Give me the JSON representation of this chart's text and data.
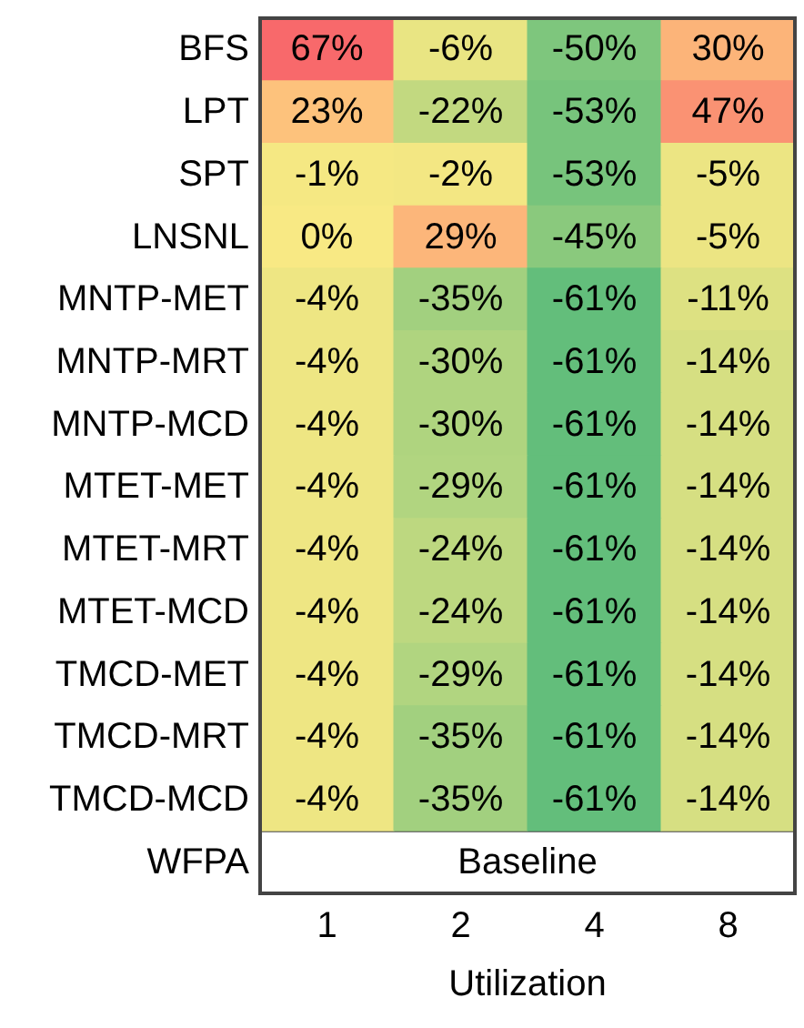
{
  "chart_data": {
    "type": "heatmap",
    "xlabel": "Utilization",
    "categories": [
      "1",
      "2",
      "4",
      "8"
    ],
    "y_categories": [
      "BFS",
      "LPT",
      "SPT",
      "LNSNL",
      "MNTP-MET",
      "MNTP-MRT",
      "MNTP-MCD",
      "MTET-MET",
      "MTET-MRT",
      "MTET-MCD",
      "TMCD-MET",
      "TMCD-MRT",
      "TMCD-MCD",
      "WFPA"
    ],
    "cells": [
      [
        67,
        -6,
        -50,
        30
      ],
      [
        23,
        -22,
        -53,
        47
      ],
      [
        -1,
        -2,
        -53,
        -5
      ],
      [
        0,
        29,
        -45,
        -5
      ],
      [
        -4,
        -35,
        -61,
        -11
      ],
      [
        -4,
        -30,
        -61,
        -14
      ],
      [
        -4,
        -30,
        -61,
        -14
      ],
      [
        -4,
        -29,
        -61,
        -14
      ],
      [
        -4,
        -24,
        -61,
        -14
      ],
      [
        -4,
        -24,
        -61,
        -14
      ],
      [
        -4,
        -29,
        -61,
        -14
      ],
      [
        -4,
        -35,
        -61,
        -14
      ],
      [
        -4,
        -35,
        -61,
        -14
      ],
      [
        null,
        null,
        null,
        null
      ]
    ],
    "cell_labels": [
      [
        "67%",
        "-6%",
        "-50%",
        "30%"
      ],
      [
        "23%",
        "-22%",
        "-53%",
        "47%"
      ],
      [
        "-1%",
        "-2%",
        "-53%",
        "-5%"
      ],
      [
        "0%",
        "29%",
        "-45%",
        "-5%"
      ],
      [
        "-4%",
        "-35%",
        "-61%",
        "-11%"
      ],
      [
        "-4%",
        "-30%",
        "-61%",
        "-14%"
      ],
      [
        "-4%",
        "-30%",
        "-61%",
        "-14%"
      ],
      [
        "-4%",
        "-29%",
        "-61%",
        "-14%"
      ],
      [
        "-4%",
        "-24%",
        "-61%",
        "-14%"
      ],
      [
        "-4%",
        "-24%",
        "-61%",
        "-14%"
      ],
      [
        "-4%",
        "-29%",
        "-61%",
        "-14%"
      ],
      [
        "-4%",
        "-35%",
        "-61%",
        "-14%"
      ],
      [
        "-4%",
        "-35%",
        "-61%",
        "-14%"
      ],
      [
        null,
        null,
        null,
        null
      ]
    ],
    "annotations": [
      "Baseline"
    ]
  }
}
